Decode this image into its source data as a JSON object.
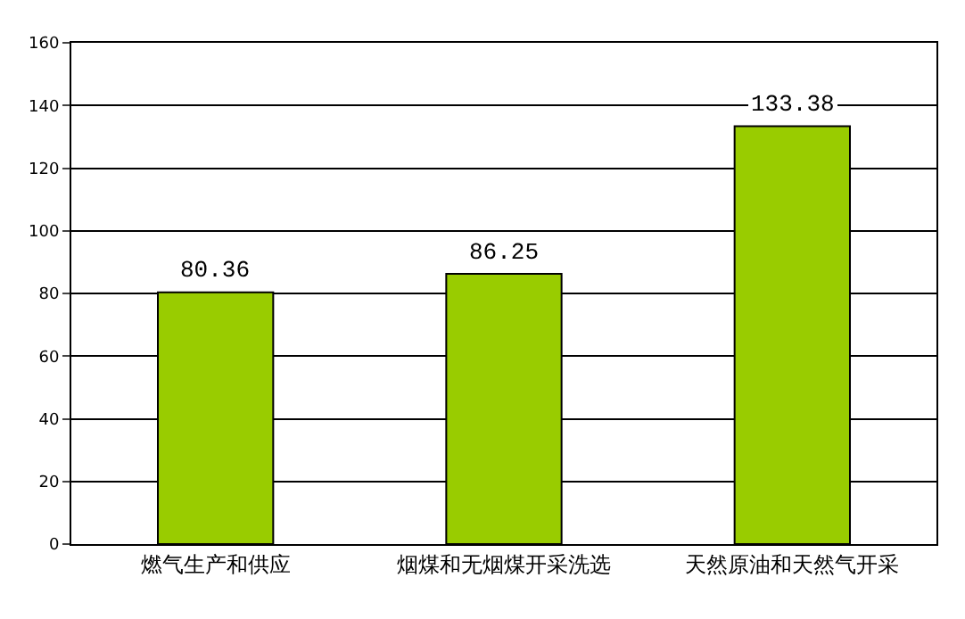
{
  "chart_data": {
    "type": "bar",
    "categories": [
      "燃气生产和供应",
      "烟煤和无烟煤开采洗选",
      "天然原油和天然气开采"
    ],
    "values": [
      80.36,
      86.25,
      133.38
    ],
    "color": "#99cc00",
    "data_labels": true,
    "ylim": [
      0,
      160
    ],
    "yticks": [
      0,
      20,
      40,
      60,
      80,
      100,
      120,
      140,
      160
    ],
    "grid": "y",
    "legend": false
  }
}
